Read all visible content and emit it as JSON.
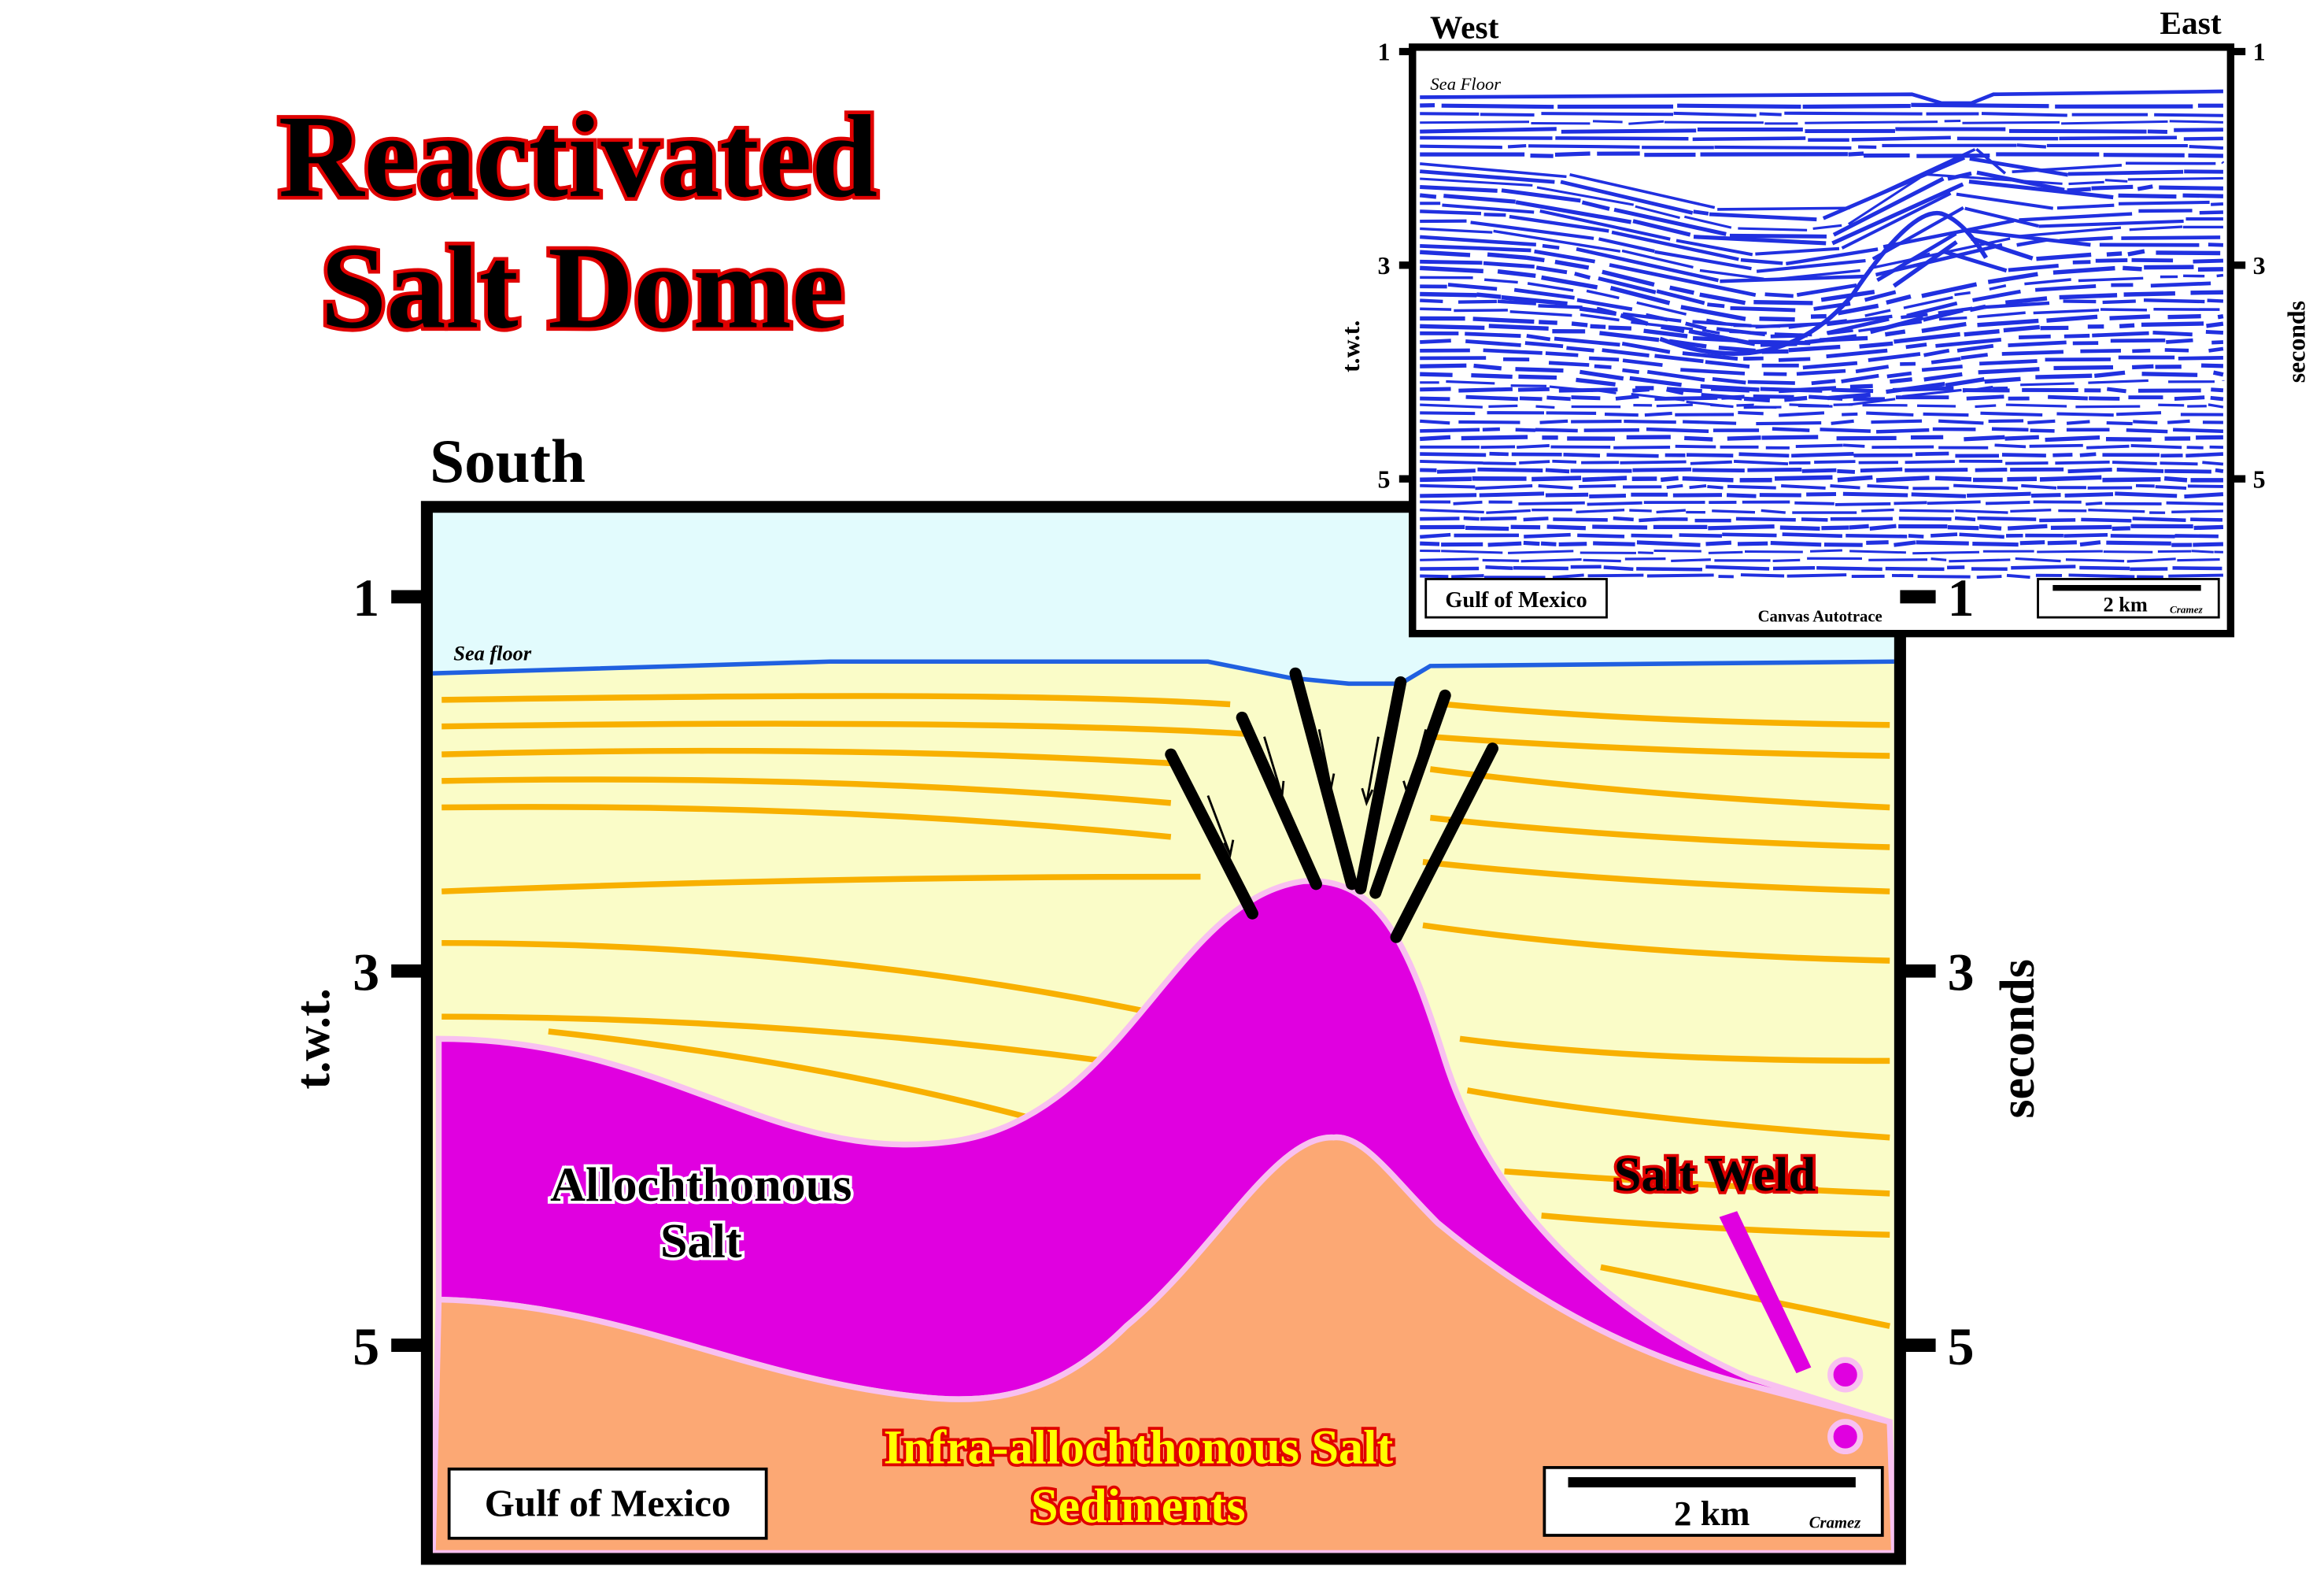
{
  "title": {
    "lines": [
      "Reactivated",
      "Salt Dome"
    ]
  },
  "section": {
    "direction": "South",
    "axis_ticks": [
      1,
      3,
      5
    ],
    "left_axis_label": "t.w.t.",
    "right_axis_label": "seconds",
    "sea_floor": "Sea floor",
    "salt_label": [
      "Allochthonous",
      "Salt"
    ],
    "weld_label": "Salt Weld",
    "sediment_label": [
      "Infra-allochthonous Salt",
      "Sediments"
    ],
    "location": "Gulf of Mexico",
    "scale": "2 km",
    "author": "Cramez"
  },
  "seismic": {
    "west": "West",
    "east": "East",
    "axis_ticks": [
      1,
      3,
      5
    ],
    "left_axis_label": "t.w.t.",
    "right_axis_label": "seconds",
    "sea_floor": "Sea Floor",
    "location": "Gulf of Mexico",
    "software": "Canvas Autotrace",
    "scale": "2 km",
    "author": "Cramez"
  }
}
